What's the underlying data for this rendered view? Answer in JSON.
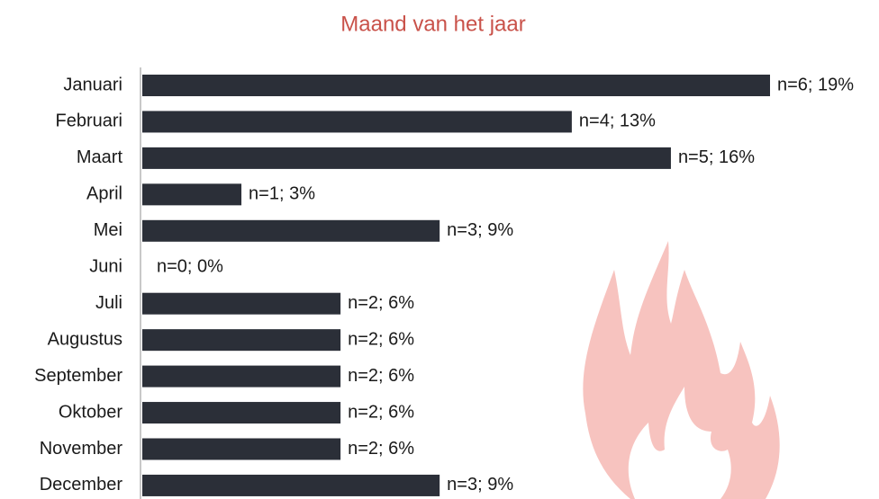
{
  "chart_data": {
    "type": "barh",
    "title": "Maand van het jaar",
    "categories": [
      "Januari",
      "Februari",
      "Maart",
      "April",
      "Mei",
      "Juni",
      "Juli",
      "Augustus",
      "September",
      "Oktober",
      "November",
      "December"
    ],
    "values": [
      19,
      13,
      16,
      3,
      9,
      0,
      6,
      6,
      6,
      6,
      6,
      9
    ],
    "value_labels": [
      "n=6; 19%",
      "n=4; 13%",
      "n=5; 16%",
      "n=1; 3%",
      "n=3; 9%",
      "n=0; 0%",
      "n=2; 6%",
      "n=2; 6%",
      "n=2; 6%",
      "n=2; 6%",
      "n=2; 6%",
      "n=3; 9%"
    ],
    "color": "#2b2f38"
  }
}
